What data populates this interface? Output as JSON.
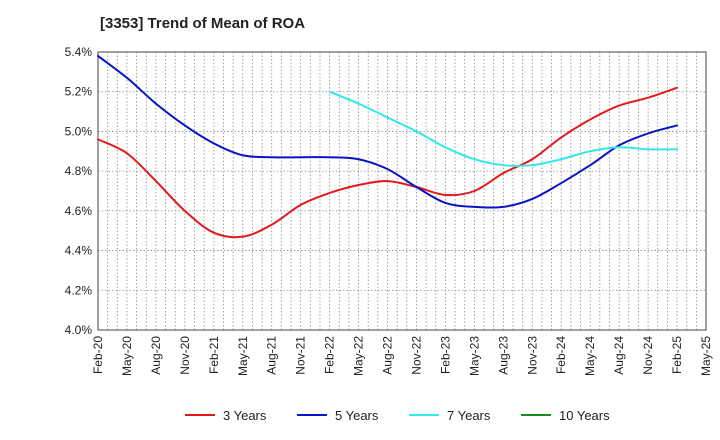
{
  "chart_data": {
    "type": "line",
    "title": "[3353]  Trend of Mean of ROA",
    "xlabel": "",
    "ylabel": "",
    "ylim": [
      4.0,
      5.4
    ],
    "y_ticks": [
      "4.0%",
      "4.2%",
      "4.4%",
      "4.6%",
      "4.8%",
      "5.0%",
      "5.2%",
      "5.4%"
    ],
    "y_tick_values": [
      4.0,
      4.2,
      4.4,
      4.6,
      4.8,
      5.0,
      5.2,
      5.4
    ],
    "categories": [
      "Feb-20",
      "May-20",
      "Aug-20",
      "Nov-20",
      "Feb-21",
      "May-21",
      "Aug-21",
      "Nov-21",
      "Feb-22",
      "May-22",
      "Aug-22",
      "Nov-22",
      "Feb-23",
      "May-23",
      "Aug-23",
      "Nov-23",
      "Feb-24",
      "May-24",
      "Aug-24",
      "Nov-24",
      "Feb-25",
      "May-25"
    ],
    "grid": true,
    "legend_position": "bottom",
    "series": [
      {
        "name": "3 Years",
        "color": "#e31a1c",
        "values": [
          4.96,
          4.89,
          4.75,
          4.6,
          4.49,
          4.47,
          4.53,
          4.63,
          4.69,
          4.73,
          4.75,
          4.72,
          4.68,
          4.7,
          4.79,
          4.86,
          4.97,
          5.06,
          5.13,
          5.17,
          5.22,
          null
        ]
      },
      {
        "name": "5 Years",
        "color": "#0a14c4",
        "values": [
          5.38,
          5.27,
          5.14,
          5.03,
          4.94,
          4.88,
          4.87,
          4.87,
          4.87,
          4.86,
          4.81,
          4.72,
          4.64,
          4.62,
          4.62,
          4.66,
          4.74,
          4.83,
          4.93,
          4.99,
          5.03,
          null
        ]
      },
      {
        "name": "7 Years",
        "color": "#33e8e8",
        "values": [
          null,
          null,
          null,
          null,
          null,
          null,
          null,
          null,
          5.2,
          5.14,
          5.07,
          5.0,
          4.92,
          4.86,
          4.83,
          4.83,
          4.86,
          4.9,
          4.92,
          4.91,
          4.91,
          null
        ]
      },
      {
        "name": "10 Years",
        "color": "#1a8a1a",
        "values": [
          null,
          null,
          null,
          null,
          null,
          null,
          null,
          null,
          null,
          null,
          null,
          null,
          null,
          null,
          null,
          null,
          null,
          null,
          null,
          null,
          null,
          null
        ]
      }
    ]
  }
}
